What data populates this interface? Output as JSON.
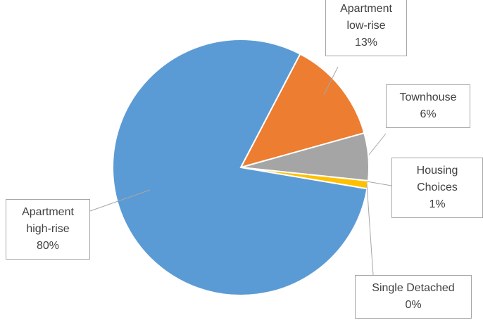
{
  "chart_data": {
    "type": "pie",
    "categories": [
      "Apartment low-rise",
      "Townhouse",
      "Housing Choices",
      "Single Detached",
      "Apartment high-rise"
    ],
    "values": [
      13,
      6,
      1,
      0,
      80
    ],
    "value_labels": [
      "13%",
      "6%",
      "1%",
      "0%",
      "80%"
    ],
    "colors": [
      "#ed7d31",
      "#a5a5a5",
      "#ffc000",
      "#4472c4",
      "#5b9bd5"
    ]
  }
}
